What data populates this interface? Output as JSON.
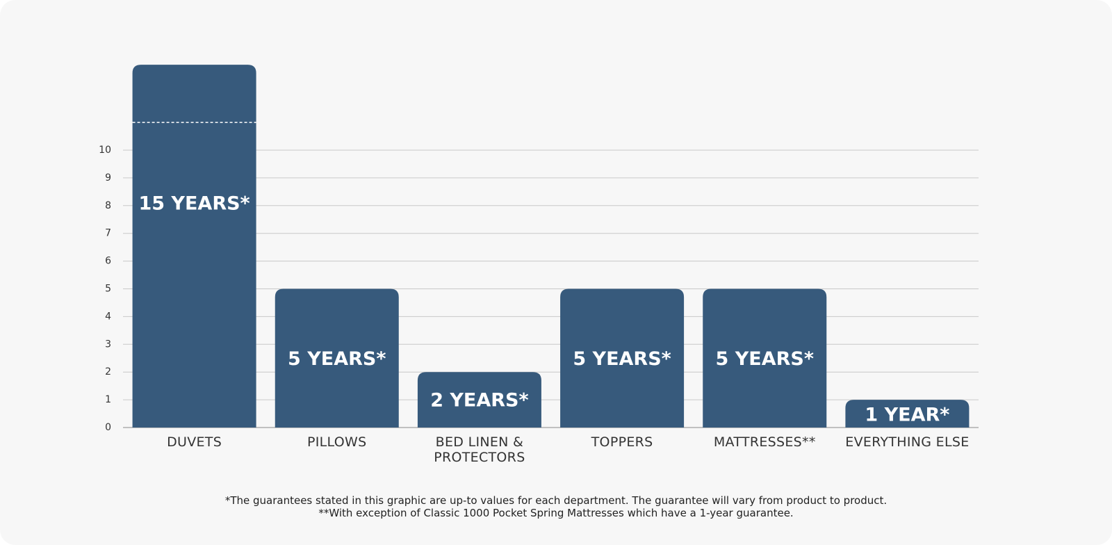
{
  "chart_data": {
    "type": "bar",
    "categories": [
      "DUVETS",
      "PILLOWS",
      "BED LINEN & PROTECTORS",
      "TOPPERS",
      "MATTRESSES**",
      "EVERYTHING ELSE"
    ],
    "values": [
      15,
      5,
      2,
      5,
      5,
      1
    ],
    "value_labels": [
      "15 YEARS*",
      "5 YEARS*",
      "2 YEARS*",
      "5 YEARS*",
      "5 YEARS*",
      "1 YEAR*"
    ],
    "color": "#375a7c",
    "ylim": [
      0,
      10
    ],
    "yticks": [
      0,
      1,
      2,
      3,
      4,
      5,
      6,
      7,
      8,
      9,
      10
    ],
    "grid": true,
    "axis_break": 11,
    "footnotes": [
      "*The guarantees stated in this graphic are up-to values for each department. The guarantee will vary from product to product.",
      "**With exception of Classic 1000 Pocket Spring Mattresses which have a 1-year guarantee."
    ]
  }
}
